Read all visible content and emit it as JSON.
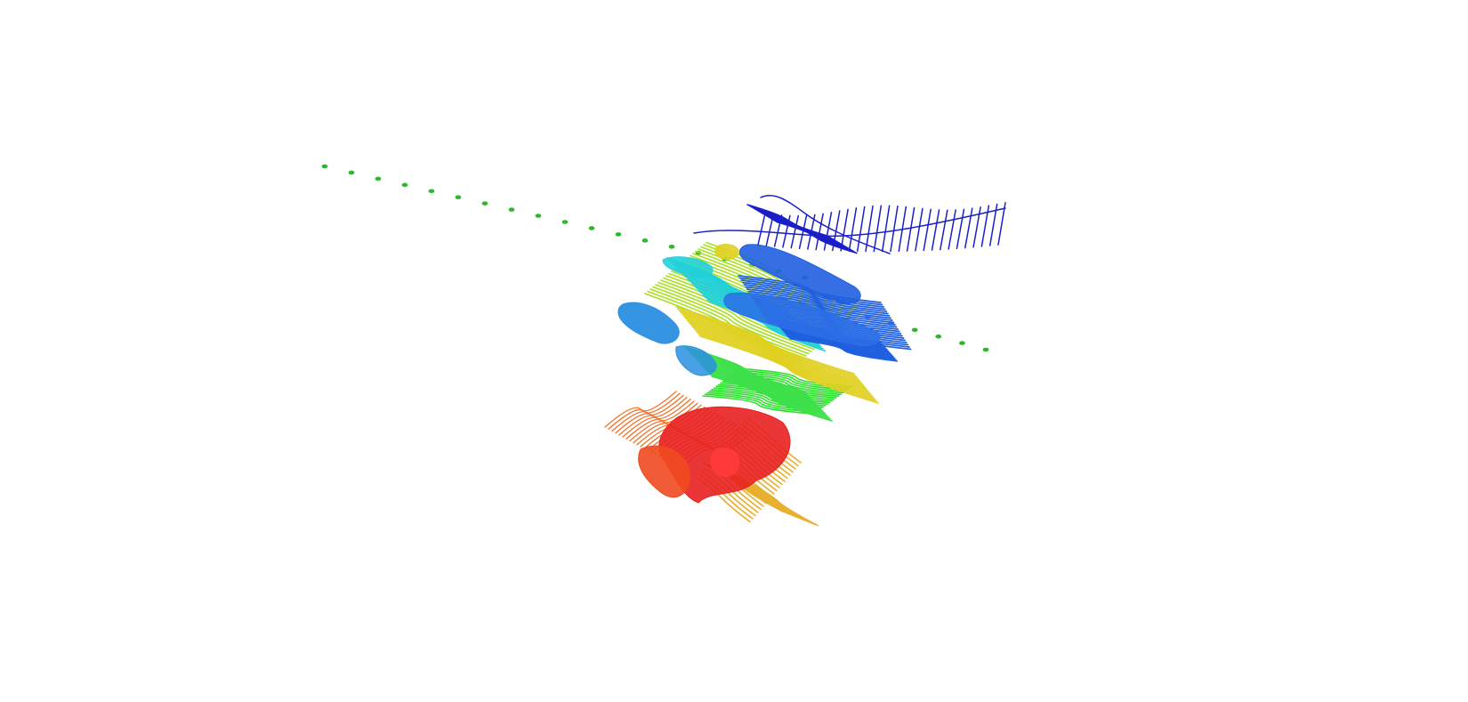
{
  "scene": {
    "background": "#ffffff",
    "subject": "protein-structure-ribbon",
    "membrane_marker_color": "#2fb82f",
    "palette": {
      "blue": "#1a1fc8",
      "royal": "#1f5fe0",
      "sky": "#2a8fe0",
      "cyan": "#22d0d8",
      "green": "#2ee02e",
      "lime": "#a8e020",
      "yellow": "#e0d020",
      "gold": "#e8b030",
      "orange": "#f07830",
      "red": "#e82020"
    }
  }
}
